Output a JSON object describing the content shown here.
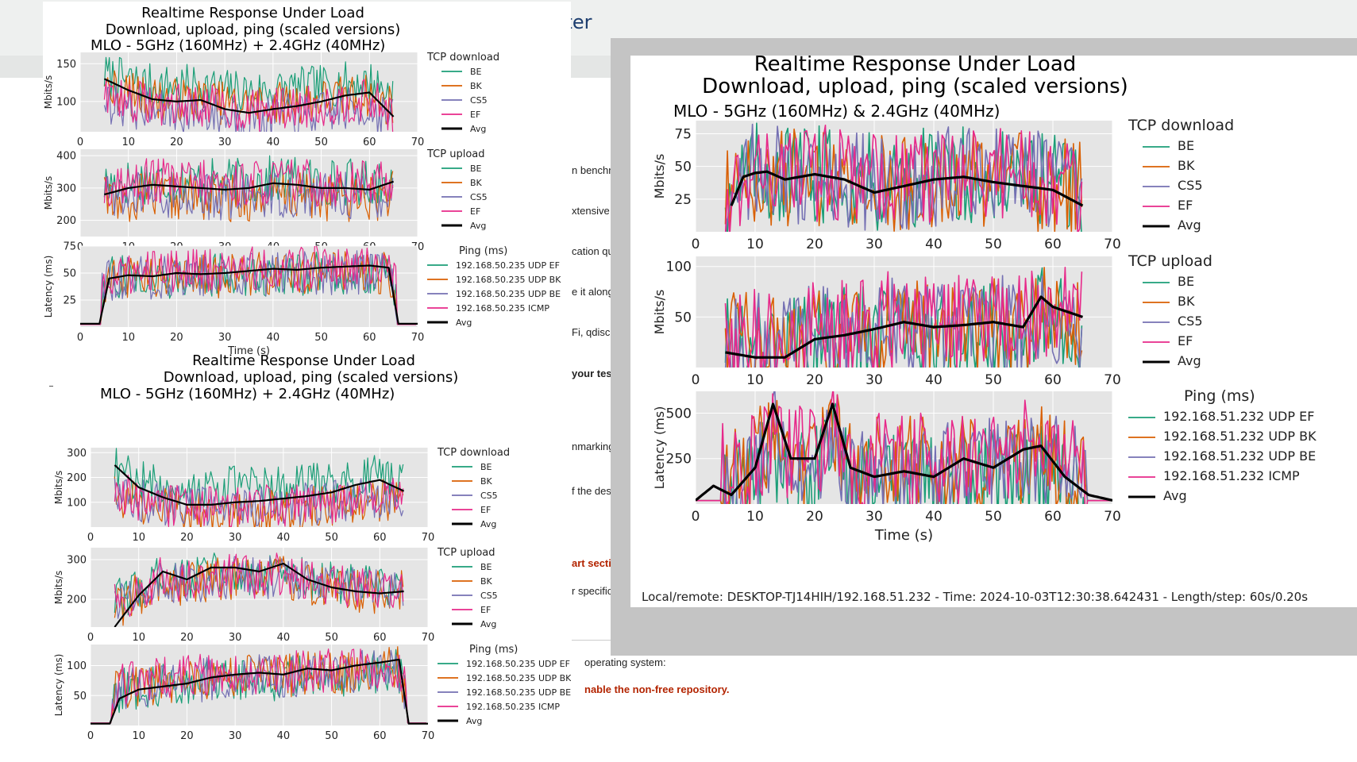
{
  "background": {
    "title": "ster",
    "fragments": [
      "n benchmark",
      "xtensive plo",
      "cation quality",
      "e it along wi",
      "Fi, qdisc and",
      "your testing",
      "nmarking",
      "f the desi",
      "art secti",
      "r specific",
      "operating system:",
      "nable the non-free repository."
    ]
  },
  "ticks": {
    "x": [
      "0",
      "10",
      "20",
      "30",
      "40",
      "50",
      "60",
      "70"
    ]
  },
  "colors": {
    "BE": "#1b9e77",
    "BK": "#d95f02",
    "CS5": "#7570b3",
    "EF": "#e7298a",
    "Avg": "#000000",
    "ICMP": "#e7298a"
  },
  "chart_data": [
    {
      "type": "line",
      "title": "Realtime Response Under Load",
      "subtitle": "Download, upload, ping (scaled versions)",
      "caption": "MLO - 5GHz (160MHz) + 2.4GHz (40MHz)",
      "xlabel": "Time (s)",
      "xlim": [
        0,
        70
      ],
      "panels": [
        {
          "ylabel": "Mbits/s",
          "ylim": [
            60,
            165
          ],
          "yticks": [
            100,
            150
          ],
          "legend_title": "TCP download",
          "legend": [
            "BE",
            "BK",
            "CS5",
            "EF",
            "Avg"
          ],
          "avg_x": [
            5,
            10,
            15,
            20,
            25,
            30,
            35,
            40,
            45,
            50,
            55,
            60,
            65
          ],
          "avg": [
            130,
            115,
            103,
            100,
            102,
            90,
            85,
            90,
            94,
            100,
            108,
            112,
            80
          ],
          "base": [
            140,
            105,
            70,
            90
          ]
        },
        {
          "ylabel": "Mbits/s",
          "ylim": [
            150,
            420
          ],
          "yticks": [
            200,
            300,
            400
          ],
          "legend_title": "TCP upload",
          "legend": [
            "BE",
            "BK",
            "CS5",
            "EF",
            "Avg"
          ],
          "avg_x": [
            5,
            10,
            15,
            20,
            25,
            30,
            35,
            40,
            45,
            50,
            55,
            60,
            65
          ],
          "avg": [
            280,
            300,
            310,
            305,
            300,
            295,
            300,
            315,
            310,
            300,
            300,
            295,
            320
          ],
          "base": [
            340,
            240,
            250,
            330
          ]
        },
        {
          "ylabel": "Latency (ms)",
          "ylim": [
            0,
            75
          ],
          "yticks": [
            25,
            50,
            75
          ],
          "legend_title": "Ping (ms)",
          "legend": [
            "192.168.50.235 UDP EF",
            "192.168.50.235 UDP BK",
            "192.168.50.235 UDP BE",
            "192.168.50.235 ICMP",
            "Avg"
          ],
          "avg_x": [
            0,
            4,
            6,
            10,
            15,
            20,
            25,
            30,
            35,
            40,
            45,
            50,
            55,
            60,
            64,
            66,
            70
          ],
          "avg": [
            3,
            3,
            45,
            48,
            47,
            50,
            49,
            50,
            52,
            54,
            53,
            55,
            56,
            57,
            55,
            3,
            3
          ],
          "base": [
            45,
            45,
            45,
            55
          ]
        }
      ]
    },
    {
      "type": "line",
      "title": "Realtime Response Under Load",
      "subtitle": "Download, upload, ping (scaled versions)",
      "caption": "MLO - 5GHz (160MHz) + 2.4GHz (40MHz)",
      "xlabel": "Time (s)",
      "xlim": [
        0,
        70
      ],
      "panels": [
        {
          "ylabel": "Mbits/s",
          "ylim": [
            0,
            320
          ],
          "yticks": [
            100,
            200,
            300
          ],
          "legend_title": "TCP download",
          "legend": [
            "BE",
            "BK",
            "CS5",
            "EF",
            "Avg"
          ],
          "avg_x": [
            5,
            10,
            15,
            20,
            25,
            30,
            35,
            40,
            45,
            50,
            55,
            60,
            65
          ],
          "avg": [
            250,
            160,
            120,
            90,
            90,
            100,
            105,
            115,
            125,
            140,
            170,
            190,
            145
          ],
          "base": [
            220,
            25,
            60,
            60
          ]
        },
        {
          "ylabel": "Mbits/s",
          "ylim": [
            130,
            330
          ],
          "yticks": [
            200,
            300
          ],
          "legend_title": "TCP upload",
          "legend": [
            "BE",
            "BK",
            "CS5",
            "EF",
            "Avg"
          ],
          "avg_x": [
            5,
            10,
            15,
            20,
            25,
            30,
            35,
            40,
            45,
            50,
            55,
            60,
            65
          ],
          "avg": [
            130,
            210,
            270,
            250,
            280,
            280,
            270,
            290,
            250,
            230,
            220,
            215,
            220
          ],
          "base": [
            250,
            220,
            230,
            240
          ]
        },
        {
          "ylabel": "Latency (ms)",
          "ylim": [
            0,
            135
          ],
          "yticks": [
            50,
            100
          ],
          "legend_title": "Ping (ms)",
          "legend": [
            "192.168.50.235 UDP EF",
            "192.168.50.235 UDP BK",
            "192.168.50.235 UDP BE",
            "192.168.50.235 ICMP",
            "Avg"
          ],
          "avg_x": [
            0,
            4,
            6,
            10,
            15,
            20,
            25,
            30,
            35,
            40,
            45,
            50,
            55,
            60,
            64,
            66,
            70
          ],
          "avg": [
            3,
            3,
            45,
            60,
            65,
            70,
            80,
            85,
            88,
            85,
            95,
            92,
            100,
            105,
            110,
            3,
            3
          ],
          "base": [
            70,
            80,
            75,
            90
          ]
        }
      ]
    },
    {
      "type": "line",
      "title": "Realtime Response Under Load",
      "subtitle": "Download, upload, ping (scaled versions)",
      "caption": "MLO - 5GHz (160MHz) & 2.4GHz (40MHz)",
      "xlabel": "Time (s)",
      "xlim": [
        0,
        70
      ],
      "footer": "Local/remote: DESKTOP-TJ14HIH/192.168.51.232 - Time: 2024-10-03T12:30:38.642431 - Length/step: 60s/0.20s",
      "panels": [
        {
          "ylabel": "Mbits/s",
          "ylim": [
            0,
            85
          ],
          "yticks": [
            25,
            50,
            75
          ],
          "legend_title": "TCP download",
          "legend": [
            "BE",
            "BK",
            "CS5",
            "EF",
            "Avg"
          ],
          "avg_x": [
            6,
            8,
            10,
            12,
            15,
            20,
            25,
            30,
            35,
            40,
            45,
            50,
            55,
            60,
            65
          ],
          "avg": [
            20,
            42,
            45,
            46,
            40,
            44,
            40,
            30,
            35,
            40,
            42,
            38,
            35,
            32,
            20
          ],
          "base": [
            45,
            40,
            45,
            45
          ]
        },
        {
          "ylabel": "Mbits/s",
          "ylim": [
            0,
            110
          ],
          "yticks": [
            50,
            100
          ],
          "legend_title": "TCP upload",
          "legend": [
            "BE",
            "BK",
            "CS5",
            "EF",
            "Avg"
          ],
          "avg_x": [
            5,
            8,
            10,
            15,
            20,
            25,
            30,
            35,
            40,
            45,
            50,
            55,
            58,
            60,
            65
          ],
          "avg": [
            15,
            12,
            10,
            10,
            28,
            32,
            38,
            45,
            40,
            42,
            45,
            40,
            70,
            60,
            50
          ],
          "base": [
            30,
            40,
            40,
            50
          ]
        },
        {
          "ylabel": "Latency (ms)",
          "ylim": [
            0,
            620
          ],
          "yticks": [
            250,
            500
          ],
          "legend_title": "Ping (ms)",
          "legend": [
            "192.168.51.232 UDP EF",
            "192.168.51.232 UDP BK",
            "192.168.51.232 UDP BE",
            "192.168.51.232 ICMP",
            "Avg"
          ],
          "avg_x": [
            0,
            3,
            6,
            10,
            13,
            16,
            20,
            23,
            26,
            30,
            35,
            40,
            45,
            50,
            55,
            58,
            62,
            66,
            70
          ],
          "avg": [
            20,
            100,
            50,
            200,
            550,
            250,
            250,
            550,
            200,
            150,
            180,
            150,
            250,
            200,
            300,
            320,
            150,
            50,
            20
          ],
          "base": [
            60,
            250,
            200,
            300
          ]
        }
      ]
    }
  ]
}
